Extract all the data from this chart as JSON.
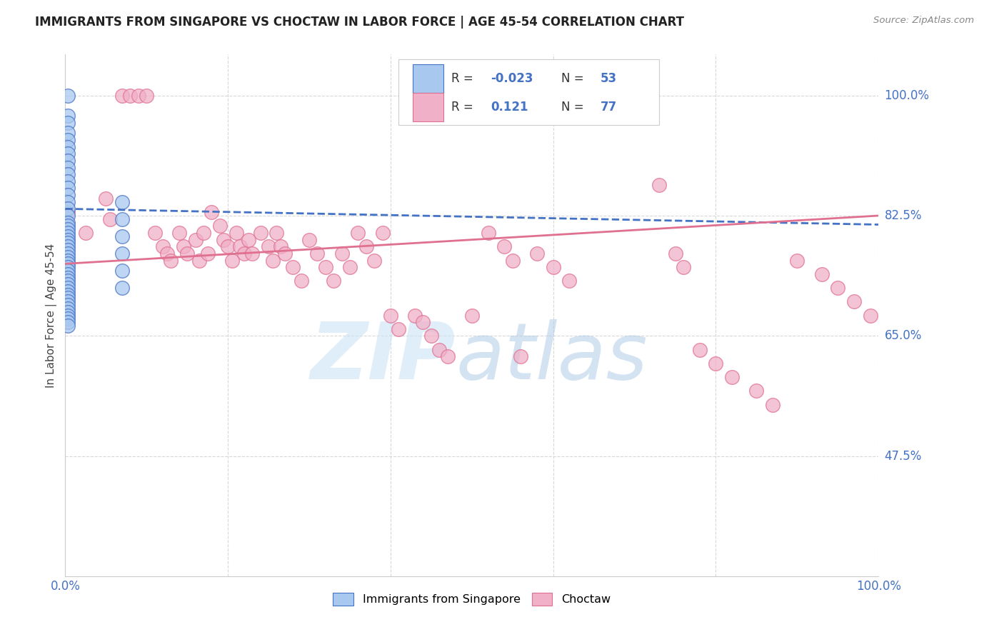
{
  "title": "IMMIGRANTS FROM SINGAPORE VS CHOCTAW IN LABOR FORCE | AGE 45-54 CORRELATION CHART",
  "source": "Source: ZipAtlas.com",
  "ylabel": "In Labor Force | Age 45-54",
  "xlim": [
    0.0,
    1.0
  ],
  "ylim": [
    0.3,
    1.06
  ],
  "ytick_positions": [
    0.475,
    0.65,
    0.825,
    1.0
  ],
  "ytick_labels": [
    "47.5%",
    "65.0%",
    "82.5%",
    "100.0%"
  ],
  "legend_r_singapore": "-0.023",
  "legend_n_singapore": "53",
  "legend_r_choctaw": "0.121",
  "legend_n_choctaw": "77",
  "color_singapore": "#a8c8f0",
  "color_choctaw": "#f0b0c8",
  "color_singapore_edge": "#4472c4",
  "color_choctaw_edge": "#e07090",
  "color_blue": "#4472c4",
  "color_pink": "#e07090",
  "singapore_x": [
    0.003,
    0.003,
    0.003,
    0.003,
    0.003,
    0.003,
    0.003,
    0.003,
    0.003,
    0.003,
    0.003,
    0.003,
    0.003,
    0.003,
    0.003,
    0.003,
    0.003,
    0.003,
    0.003,
    0.003,
    0.003,
    0.003,
    0.003,
    0.003,
    0.003,
    0.003,
    0.003,
    0.003,
    0.003,
    0.003,
    0.003,
    0.003,
    0.003,
    0.003,
    0.003,
    0.003,
    0.003,
    0.003,
    0.003,
    0.003,
    0.003,
    0.003,
    0.003,
    0.003,
    0.003,
    0.003,
    0.003,
    0.07,
    0.07,
    0.07,
    0.07,
    0.07,
    0.07
  ],
  "singapore_y": [
    1.0,
    0.97,
    0.96,
    0.945,
    0.935,
    0.925,
    0.915,
    0.905,
    0.895,
    0.885,
    0.875,
    0.865,
    0.855,
    0.845,
    0.835,
    0.825,
    0.815,
    0.81,
    0.805,
    0.8,
    0.795,
    0.79,
    0.785,
    0.78,
    0.775,
    0.77,
    0.765,
    0.76,
    0.755,
    0.75,
    0.745,
    0.74,
    0.735,
    0.73,
    0.725,
    0.72,
    0.715,
    0.71,
    0.705,
    0.7,
    0.695,
    0.69,
    0.685,
    0.68,
    0.675,
    0.67,
    0.665,
    0.845,
    0.82,
    0.795,
    0.77,
    0.745,
    0.72
  ],
  "choctaw_x": [
    0.003,
    0.025,
    0.05,
    0.055,
    0.07,
    0.08,
    0.09,
    0.1,
    0.11,
    0.12,
    0.125,
    0.13,
    0.14,
    0.145,
    0.15,
    0.16,
    0.165,
    0.17,
    0.175,
    0.18,
    0.19,
    0.195,
    0.2,
    0.205,
    0.21,
    0.215,
    0.22,
    0.225,
    0.23,
    0.24,
    0.25,
    0.255,
    0.26,
    0.265,
    0.27,
    0.28,
    0.29,
    0.3,
    0.31,
    0.32,
    0.33,
    0.34,
    0.35,
    0.36,
    0.37,
    0.38,
    0.39,
    0.4,
    0.41,
    0.43,
    0.44,
    0.45,
    0.46,
    0.47,
    0.5,
    0.52,
    0.54,
    0.55,
    0.56,
    0.58,
    0.6,
    0.62,
    0.73,
    0.75,
    0.76,
    0.78,
    0.8,
    0.82,
    0.85,
    0.87,
    0.9,
    0.93,
    0.95,
    0.97,
    0.99
  ],
  "choctaw_y": [
    0.83,
    0.8,
    0.85,
    0.82,
    1.0,
    1.0,
    1.0,
    1.0,
    0.8,
    0.78,
    0.77,
    0.76,
    0.8,
    0.78,
    0.77,
    0.79,
    0.76,
    0.8,
    0.77,
    0.83,
    0.81,
    0.79,
    0.78,
    0.76,
    0.8,
    0.78,
    0.77,
    0.79,
    0.77,
    0.8,
    0.78,
    0.76,
    0.8,
    0.78,
    0.77,
    0.75,
    0.73,
    0.79,
    0.77,
    0.75,
    0.73,
    0.77,
    0.75,
    0.8,
    0.78,
    0.76,
    0.8,
    0.68,
    0.66,
    0.68,
    0.67,
    0.65,
    0.63,
    0.62,
    0.68,
    0.8,
    0.78,
    0.76,
    0.62,
    0.77,
    0.75,
    0.73,
    0.87,
    0.77,
    0.75,
    0.63,
    0.61,
    0.59,
    0.57,
    0.55,
    0.76,
    0.74,
    0.72,
    0.7,
    0.68
  ],
  "singapore_trend_x": [
    0.0,
    1.0
  ],
  "singapore_trend_y": [
    0.835,
    0.812
  ],
  "choctaw_trend_x": [
    0.0,
    1.0
  ],
  "choctaw_trend_y": [
    0.755,
    0.825
  ],
  "bg_color": "#ffffff",
  "grid_color": "#d8d8d8",
  "title_color": "#333333",
  "axis_color": "#4472c4"
}
